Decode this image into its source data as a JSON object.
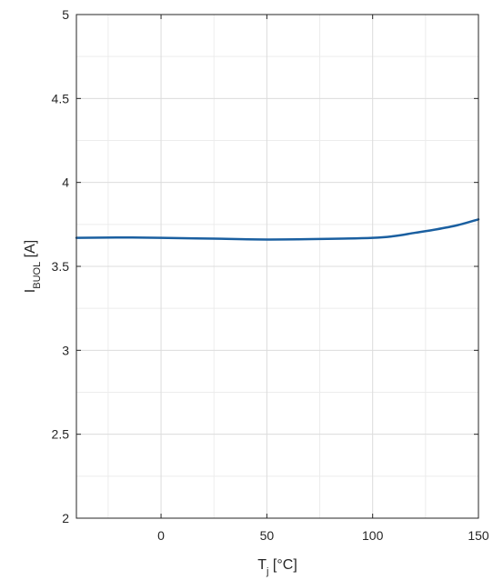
{
  "chart_data": {
    "type": "line",
    "title": "",
    "xlabel": {
      "main": "T",
      "subscript": "j",
      "unit": " [°C]"
    },
    "ylabel": {
      "main": "I",
      "subscript": "BUOL",
      "unit": " [A]"
    },
    "xlim": [
      -40,
      150
    ],
    "ylim": [
      2,
      5
    ],
    "xticks": [
      0,
      50,
      100,
      150
    ],
    "xtick_labels": [
      "0",
      "50",
      "100",
      "150"
    ],
    "xminor": [
      -25,
      25,
      75,
      125
    ],
    "yticks": [
      2,
      2.5,
      3,
      3.5,
      4,
      4.5,
      5
    ],
    "ytick_labels": [
      "2",
      "2.5",
      "3",
      "3.5",
      "4",
      "4.5",
      "5"
    ],
    "yminor": [
      2.25,
      2.75,
      3.25,
      3.75,
      4.25,
      4.75
    ],
    "grid": true,
    "colors": {
      "line": "#1a5fa0",
      "grid_major": "#dcdcdc",
      "grid_minor": "#ececec",
      "axes": "#262626"
    },
    "series": [
      {
        "x": [
          -40,
          -20,
          0,
          25,
          50,
          75,
          100,
          110,
          120,
          130,
          140,
          150
        ],
        "values": [
          3.67,
          3.672,
          3.67,
          3.665,
          3.66,
          3.663,
          3.67,
          3.68,
          3.7,
          3.72,
          3.745,
          3.78
        ]
      }
    ]
  }
}
